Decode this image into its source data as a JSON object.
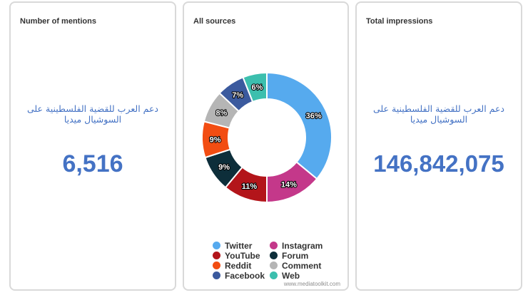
{
  "cards": {
    "mentions": {
      "title": "Number of mentions",
      "subtitle": "دعم العرب للقضية الفلسطينية على السوشيال ميديا",
      "value": "6,516"
    },
    "sources": {
      "title": "All sources",
      "watermark": "www.mediatoolkit.com"
    },
    "impressions": {
      "title": "Total impressions",
      "subtitle": "دعم العرب للقضية الفلسطينية على السوشيال ميديا",
      "value": "146,842,075"
    }
  },
  "chart_data": {
    "type": "pie",
    "title": "All sources",
    "donut": true,
    "legend_position": "bottom",
    "slices": [
      {
        "name": "Twitter",
        "value": 36,
        "label": "36%",
        "color": "#56aaee"
      },
      {
        "name": "Instagram",
        "value": 14,
        "label": "14%",
        "color": "#c4388a"
      },
      {
        "name": "YouTube",
        "value": 11,
        "label": "11%",
        "color": "#b3151a"
      },
      {
        "name": "Forum",
        "value": 9,
        "label": "9%",
        "color": "#0d2e3a"
      },
      {
        "name": "Reddit",
        "value": 9,
        "label": "9%",
        "color": "#f24d12"
      },
      {
        "name": "Comment",
        "value": 8,
        "label": "8%",
        "color": "#b5b5b5"
      },
      {
        "name": "Facebook",
        "value": 7,
        "label": "7%",
        "color": "#3b5a9e"
      },
      {
        "name": "Web",
        "value": 6,
        "label": "6%",
        "color": "#3cbfae"
      }
    ]
  }
}
